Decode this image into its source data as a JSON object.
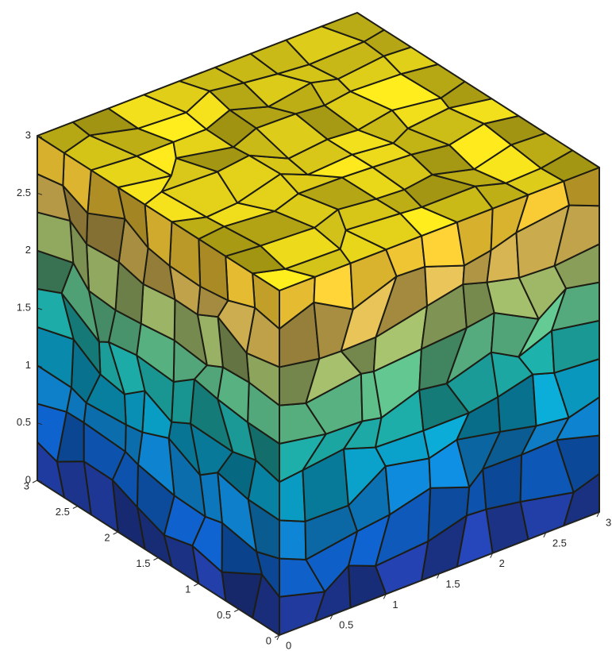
{
  "chart_data": {
    "type": "surface3d",
    "colormap": "parula",
    "xlim": [
      0,
      3
    ],
    "ylim": [
      0,
      3
    ],
    "zlim": [
      0,
      3
    ],
    "xticks": [
      0,
      0.5,
      1,
      1.5,
      2,
      2.5,
      3
    ],
    "yticks": [
      0,
      0.5,
      1,
      1.5,
      2,
      2.5,
      3
    ],
    "zticks": [
      0,
      0.5,
      1,
      1.5,
      2,
      2.5,
      3
    ]
  }
}
